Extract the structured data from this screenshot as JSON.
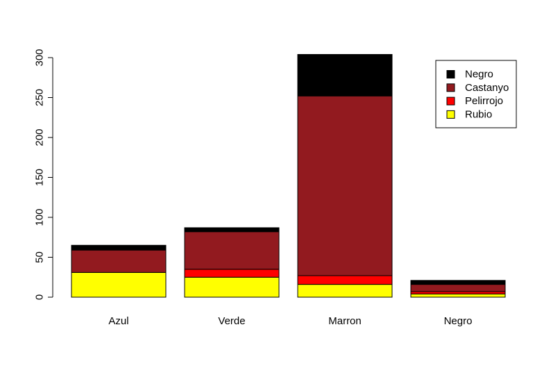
{
  "chart_data": {
    "type": "bar",
    "stacked": true,
    "categories": [
      "Azul",
      "Verde",
      "Marron",
      "Negro"
    ],
    "series": [
      {
        "name": "Rubio",
        "color": "#FFFF00",
        "values": [
          31,
          25,
          16,
          4
        ]
      },
      {
        "name": "Pelirrojo",
        "color": "#FF0000",
        "values": [
          0,
          10,
          11,
          3
        ]
      },
      {
        "name": "Castanyo",
        "color": "#921A1F",
        "values": [
          28,
          47,
          225,
          9
        ]
      },
      {
        "name": "Negro",
        "color": "#000000",
        "values": [
          6,
          5,
          52,
          5
        ]
      }
    ],
    "ylim": [
      0,
      300
    ],
    "yticks": [
      0,
      50,
      100,
      150,
      200,
      250,
      300
    ],
    "legend_placement": "top-right",
    "grid": false,
    "title": "",
    "xlabel": "",
    "ylabel": ""
  }
}
